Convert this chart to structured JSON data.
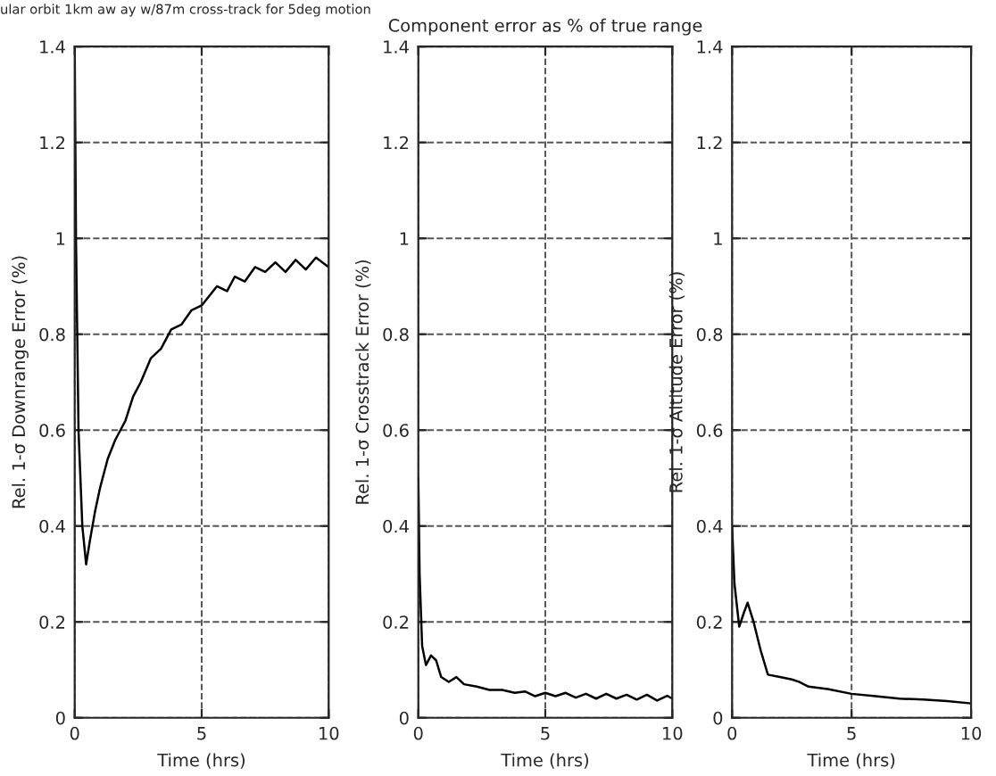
{
  "chart_data": [
    {
      "type": "line",
      "title": "ular orbit 1km aw ay w/87m cross-track for 5deg motion",
      "xlabel": "Time (hrs)",
      "ylabel": "Rel. 1-σ Downrange Error (%)",
      "xlim": [
        0,
        10
      ],
      "ylim": [
        0,
        1.4
      ],
      "xticks": [
        0,
        5,
        10
      ],
      "yticks": [
        0,
        0.2,
        0.4,
        0.6,
        0.8,
        1,
        1.2,
        1.4
      ],
      "grid": true,
      "line_style": "solid",
      "series": [
        {
          "color": "#000000",
          "x": [
            0,
            0.05,
            0.15,
            0.3,
            0.45,
            0.6,
            0.8,
            1.0,
            1.3,
            1.6,
            2.0,
            2.3,
            2.6,
            3.0,
            3.4,
            3.8,
            4.2,
            4.6,
            5.0,
            5.3,
            5.6,
            6.0,
            6.3,
            6.7,
            7.1,
            7.5,
            7.9,
            8.3,
            8.7,
            9.1,
            9.5,
            10
          ],
          "values": [
            1.4,
            1.0,
            0.6,
            0.4,
            0.32,
            0.37,
            0.43,
            0.48,
            0.54,
            0.58,
            0.62,
            0.67,
            0.7,
            0.75,
            0.77,
            0.81,
            0.82,
            0.85,
            0.86,
            0.88,
            0.9,
            0.89,
            0.92,
            0.91,
            0.94,
            0.93,
            0.95,
            0.93,
            0.955,
            0.935,
            0.96,
            0.94
          ]
        }
      ]
    },
    {
      "type": "line",
      "title": "Component error as % of true range",
      "xlabel": "Time (hrs)",
      "ylabel": "Rel. 1-σ Crosstrack Error (%)",
      "xlim": [
        0,
        10
      ],
      "ylim": [
        0,
        1.4
      ],
      "xticks": [
        0,
        5,
        10
      ],
      "yticks": [
        0,
        0.2,
        0.4,
        0.6,
        0.8,
        1,
        1.2,
        1.4
      ],
      "grid": true,
      "line_style": "solid",
      "series": [
        {
          "color": "#000000",
          "x": [
            0,
            0.05,
            0.15,
            0.3,
            0.5,
            0.7,
            0.9,
            1.2,
            1.5,
            1.8,
            2.3,
            2.8,
            3.3,
            3.8,
            4.2,
            4.6,
            5.0,
            5.4,
            5.8,
            6.2,
            6.6,
            7.0,
            7.4,
            7.8,
            8.2,
            8.6,
            9.0,
            9.4,
            9.8,
            10
          ],
          "values": [
            0.5,
            0.3,
            0.15,
            0.11,
            0.13,
            0.12,
            0.085,
            0.075,
            0.085,
            0.07,
            0.065,
            0.058,
            0.058,
            0.052,
            0.055,
            0.045,
            0.052,
            0.045,
            0.052,
            0.042,
            0.05,
            0.04,
            0.05,
            0.04,
            0.048,
            0.038,
            0.048,
            0.036,
            0.046,
            0.04
          ]
        }
      ]
    },
    {
      "type": "line",
      "xlabel": "Time (hrs)",
      "ylabel": "Rel. 1-σ Altitude Error (%)",
      "xlim": [
        0,
        10
      ],
      "ylim": [
        0,
        1.4
      ],
      "xticks": [
        0,
        5,
        10
      ],
      "yticks": [
        0,
        0.2,
        0.4,
        0.6,
        0.8,
        1,
        1.2,
        1.4
      ],
      "grid": true,
      "line_style": "solid",
      "series": [
        {
          "color": "#000000",
          "x": [
            0,
            0.1,
            0.3,
            0.5,
            0.65,
            0.9,
            1.2,
            1.5,
            2.0,
            2.5,
            2.8,
            3.2,
            4,
            5,
            6,
            7,
            8,
            9,
            10
          ],
          "values": [
            0.4,
            0.28,
            0.19,
            0.22,
            0.24,
            0.2,
            0.14,
            0.09,
            0.085,
            0.08,
            0.075,
            0.065,
            0.06,
            0.05,
            0.045,
            0.04,
            0.038,
            0.035,
            0.03
          ]
        }
      ]
    }
  ]
}
